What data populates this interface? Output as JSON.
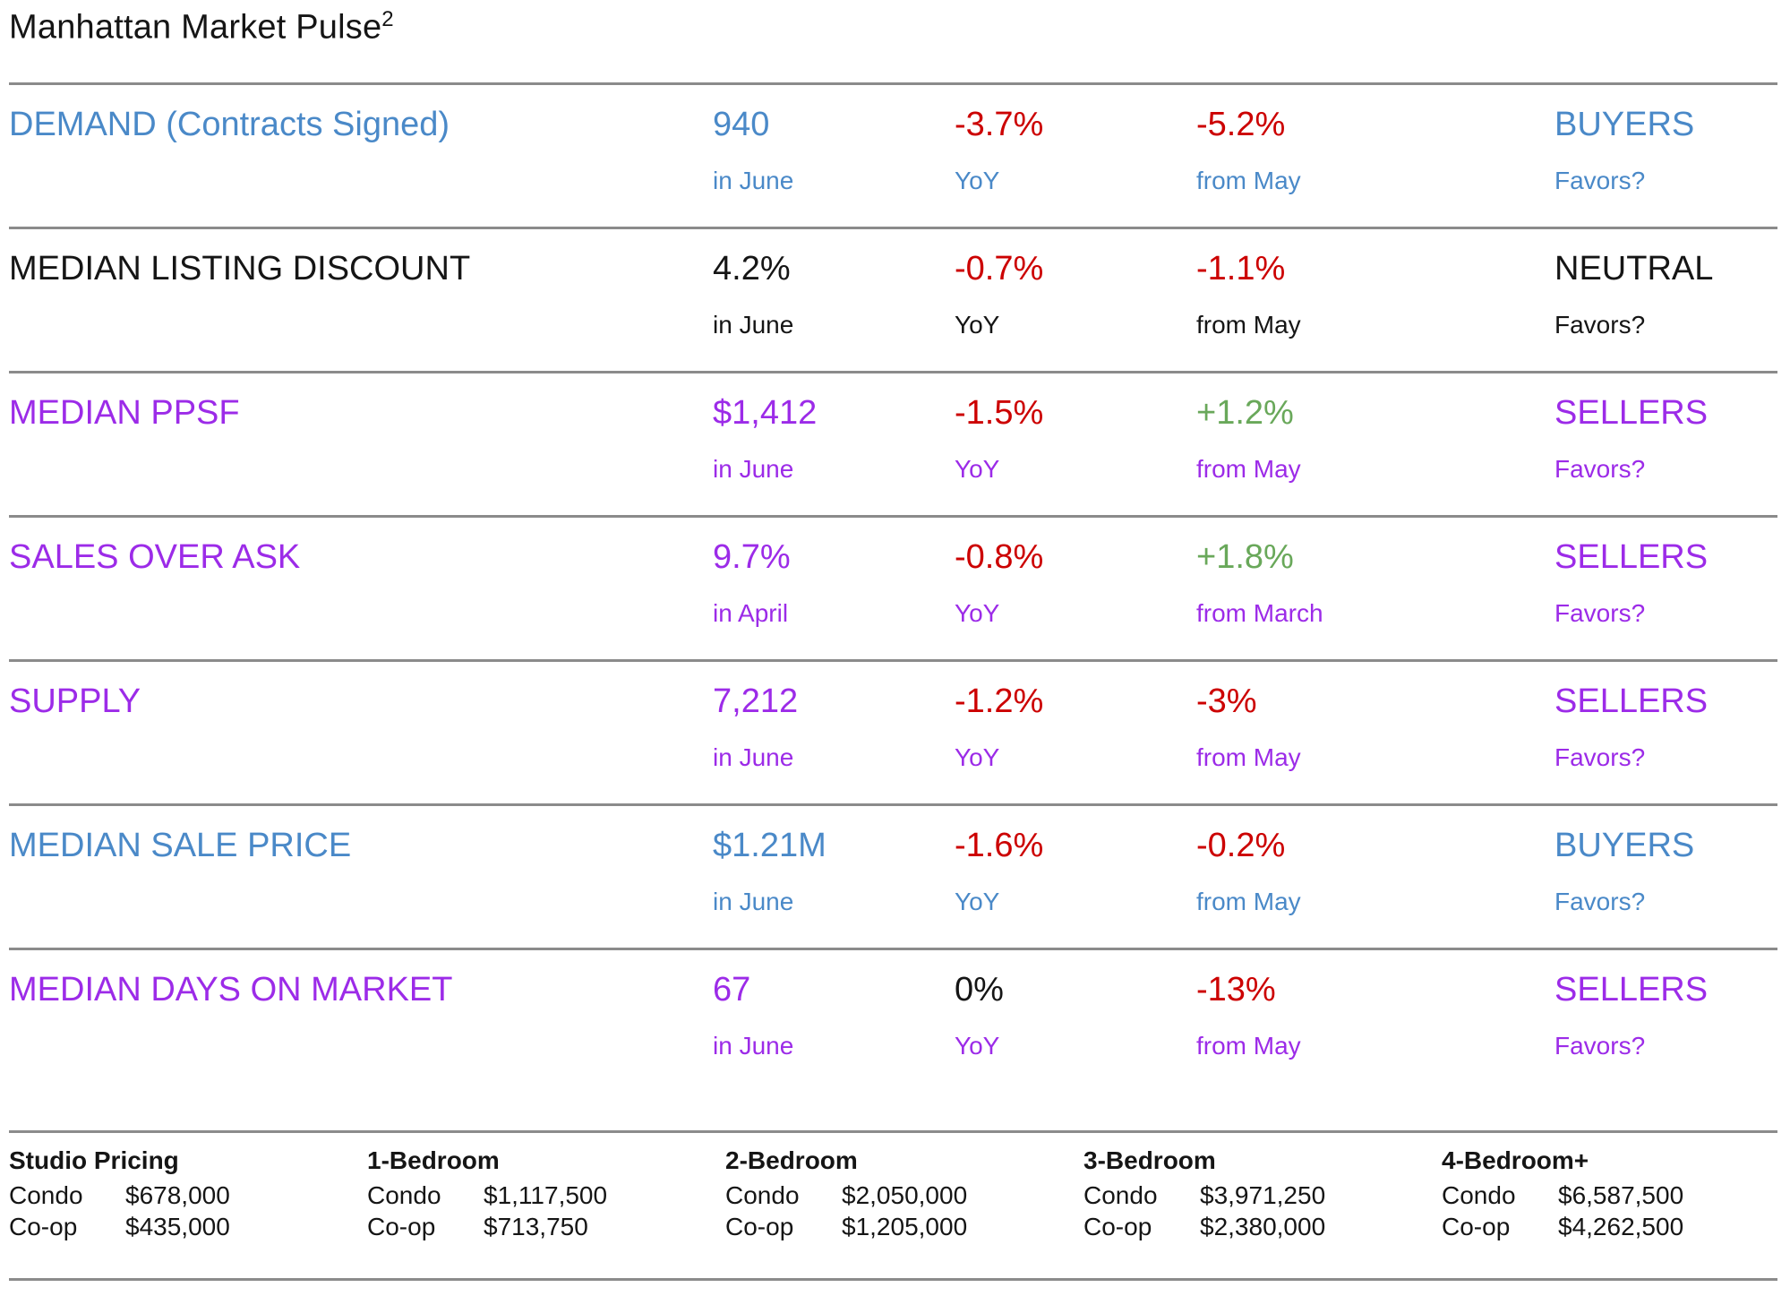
{
  "title": {
    "text": "Manhattan Market Pulse",
    "superscript": "2"
  },
  "colors": {
    "blue": "#4A89C8",
    "purple": "#9C2BE8",
    "red": "#CC0000",
    "green": "#69A85A",
    "black": "#151515",
    "divider": "#8B8B8B"
  },
  "metrics": [
    {
      "label": "DEMAND (Contracts Signed)",
      "label_color": "blue",
      "value": "940",
      "value_sub": "in June",
      "value_color": "blue",
      "yoy": "-3.7%",
      "yoy_sub": "YoY",
      "yoy_color": "red",
      "mom": "-5.2%",
      "mom_sub": "from May",
      "mom_color": "red",
      "favors": "BUYERS",
      "favors_sub": "Favors?",
      "favors_color": "blue",
      "sub_color": "blue"
    },
    {
      "label": "MEDIAN LISTING DISCOUNT",
      "label_color": "black",
      "value": "4.2%",
      "value_sub": "in June",
      "value_color": "black",
      "yoy": "-0.7%",
      "yoy_sub": "YoY",
      "yoy_color": "red",
      "mom": "-1.1%",
      "mom_sub": "from May",
      "mom_color": "red",
      "favors": "NEUTRAL",
      "favors_sub": "Favors?",
      "favors_color": "black",
      "sub_color": "black"
    },
    {
      "label": "MEDIAN PPSF",
      "label_color": "purple",
      "value": "$1,412",
      "value_sub": "in June",
      "value_color": "purple",
      "yoy": "-1.5%",
      "yoy_sub": "YoY",
      "yoy_color": "red",
      "mom": "+1.2%",
      "mom_sub": "from May",
      "mom_color": "green",
      "favors": "SELLERS",
      "favors_sub": "Favors?",
      "favors_color": "purple",
      "sub_color": "purple"
    },
    {
      "label": "SALES OVER ASK",
      "label_color": "purple",
      "value": "9.7%",
      "value_sub": "in April",
      "value_color": "purple",
      "yoy": "-0.8%",
      "yoy_sub": "YoY",
      "yoy_color": "red",
      "mom": "+1.8%",
      "mom_sub": "from March",
      "mom_color": "green",
      "favors": "SELLERS",
      "favors_sub": "Favors?",
      "favors_color": "purple",
      "sub_color": "purple"
    },
    {
      "label": "SUPPLY",
      "label_color": "purple",
      "value": "7,212",
      "value_sub": "in June",
      "value_color": "purple",
      "yoy": "-1.2%",
      "yoy_sub": "YoY",
      "yoy_color": "red",
      "mom": "-3%",
      "mom_sub": "from May",
      "mom_color": "red",
      "favors": "SELLERS",
      "favors_sub": "Favors?",
      "favors_color": "purple",
      "sub_color": "purple"
    },
    {
      "label": "MEDIAN SALE PRICE",
      "label_color": "blue",
      "value": "$1.21M",
      "value_sub": "in June",
      "value_color": "blue",
      "yoy": "-1.6%",
      "yoy_sub": "YoY",
      "yoy_color": "red",
      "mom": "-0.2%",
      "mom_sub": "from May",
      "mom_color": "red",
      "favors": "BUYERS",
      "favors_sub": "Favors?",
      "favors_color": "blue",
      "sub_color": "blue"
    },
    {
      "label": "MEDIAN DAYS ON MARKET",
      "label_color": "purple",
      "value": "67",
      "value_sub": "in June",
      "value_color": "purple",
      "yoy": "0%",
      "yoy_sub": "YoY",
      "yoy_color": "black",
      "mom": "-13%",
      "mom_sub": "from May",
      "mom_color": "red",
      "favors": "SELLERS",
      "favors_sub": "Favors?",
      "favors_color": "purple",
      "sub_color": "purple"
    }
  ],
  "pricing": {
    "columns": [
      {
        "header": "Studio Pricing",
        "rows": [
          {
            "label": "Condo",
            "value": "$678,000"
          },
          {
            "label": "Co-op",
            "value": "$435,000"
          }
        ]
      },
      {
        "header": "1-Bedroom",
        "rows": [
          {
            "label": "Condo",
            "value": "$1,117,500"
          },
          {
            "label": "Co-op",
            "value": "$713,750"
          }
        ]
      },
      {
        "header": "2-Bedroom",
        "rows": [
          {
            "label": "Condo",
            "value": "$2,050,000"
          },
          {
            "label": "Co-op",
            "value": "$1,205,000"
          }
        ]
      },
      {
        "header": "3-Bedroom",
        "rows": [
          {
            "label": "Condo",
            "value": "$3,971,250"
          },
          {
            "label": "Co-op",
            "value": "$2,380,000"
          }
        ]
      },
      {
        "header": "4-Bedroom+",
        "rows": [
          {
            "label": "Condo",
            "value": "$6,587,500"
          },
          {
            "label": "Co-op",
            "value": "$4,262,500"
          }
        ]
      }
    ]
  }
}
